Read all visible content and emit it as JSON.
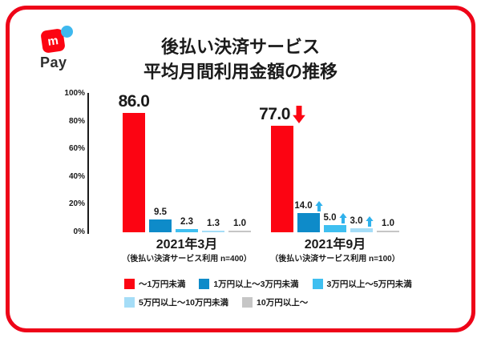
{
  "logo": {
    "mark": "m",
    "pay_label": "Pay"
  },
  "title": {
    "line1": "後払い決済サービス",
    "line2": "平均月間利用金額の推移"
  },
  "colors": {
    "border_red": "#ee0418",
    "bar_red": "#fc0412",
    "bar_blue_dark": "#0e8bc9",
    "bar_blue": "#3fbff0",
    "bar_blue_pale": "#a5ddf7",
    "bar_gray": "#c6c6c6",
    "arrow_up_blue": "#2fb1ec",
    "arrow_down_red": "#fc0412",
    "logo_dot_blue": "#3eb8ee",
    "axis_black": "#1a1a1a"
  },
  "chart_data": {
    "type": "bar",
    "title": "後払い決済サービス 平均月間利用金額の推移",
    "unit": "%",
    "ylim": [
      0,
      100
    ],
    "yticks": [
      "100%",
      "80%",
      "60%",
      "40%",
      "20%",
      "0%"
    ],
    "grid": false,
    "legend_position": "bottom",
    "series": [
      "〜1万円未満",
      "1万円以上〜3万円未満",
      "3万円以上〜5万円未満",
      "5万円以上〜10万円未満",
      "10万円以上〜"
    ],
    "series_colors": [
      "#fc0412",
      "#0e8bc9",
      "#3fbff0",
      "#a5ddf7",
      "#c6c6c6"
    ],
    "groups": [
      {
        "label": "2021年3月",
        "sublabel": "（後払い決済サービス利用 n=400）",
        "values": [
          86.0,
          9.5,
          2.3,
          1.3,
          1.0
        ],
        "value_labels": [
          "86.0",
          "9.5",
          "2.3",
          "1.3",
          "1.0"
        ],
        "trend_arrows": [
          null,
          null,
          null,
          null,
          null
        ]
      },
      {
        "label": "2021年9月",
        "sublabel": "（後払い決済サービス利用 n=100）",
        "values": [
          77.0,
          14.0,
          5.0,
          3.0,
          1.0
        ],
        "value_labels": [
          "77.0",
          "14.0",
          "5.0",
          "3.0",
          "1.0"
        ],
        "trend_arrows": [
          "down",
          "up",
          "up",
          "up",
          null
        ]
      }
    ],
    "legend_rows": [
      [
        0,
        1,
        2
      ],
      [
        3,
        4
      ]
    ]
  }
}
